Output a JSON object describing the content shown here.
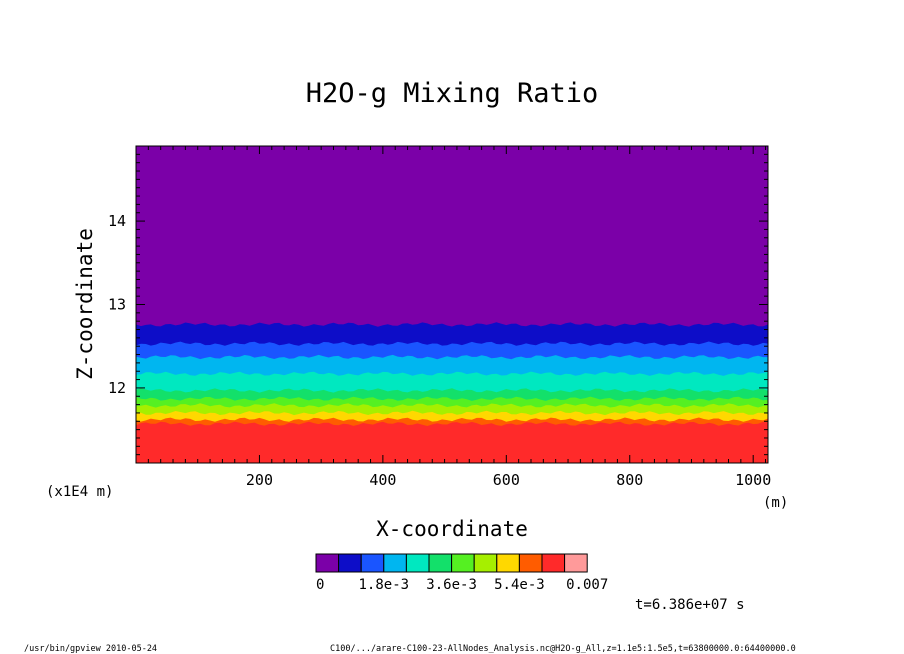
{
  "chart_data": {
    "type": "heatmap",
    "title": "H2O-g Mixing Ratio",
    "xlabel": "X-coordinate",
    "ylabel": "Z-coordinate",
    "x_unit": "(m)",
    "y_scale_label": "(x1E4 m)",
    "xlim": [
      0,
      1024
    ],
    "ylim": [
      11.1,
      14.9
    ],
    "x_ticks": [
      200,
      400,
      600,
      800,
      1000
    ],
    "x_tick_labels": [
      "200",
      "400",
      "600",
      "800",
      "1000"
    ],
    "y_ticks": [
      12,
      13,
      14
    ],
    "y_tick_labels": [
      "12",
      "13",
      "14"
    ],
    "colorbar": {
      "colors": [
        "#7b00a8",
        "#0d0dc8",
        "#1a55ff",
        "#00b6f0",
        "#00e8c0",
        "#13e06a",
        "#55f022",
        "#a6ef00",
        "#ffd800",
        "#ff5c00",
        "#ff2a2a",
        "#ff9a9a"
      ],
      "tick_labels": [
        "0",
        "1.8e-3",
        "3.6e-3",
        "5.4e-3",
        "0.007"
      ]
    },
    "bands": [
      {
        "level": 11,
        "z_top": 11.57,
        "color": "#ff2a2a"
      },
      {
        "level": 10,
        "z_top": 11.62,
        "color": "#ff5c00"
      },
      {
        "level": 8,
        "z_top": 11.7,
        "color": "#ffd800"
      },
      {
        "level": 7,
        "z_top": 11.79,
        "color": "#a6ef00"
      },
      {
        "level": 6,
        "z_top": 11.87,
        "color": "#55f022"
      },
      {
        "level": 5,
        "z_top": 11.97,
        "color": "#13e06a"
      },
      {
        "level": 4,
        "z_top": 12.17,
        "color": "#00e8c0"
      },
      {
        "level": 3,
        "z_top": 12.37,
        "color": "#00b6f0"
      },
      {
        "level": 2,
        "z_top": 12.53,
        "color": "#1a55ff"
      },
      {
        "level": 1,
        "z_top": 12.76,
        "color": "#0d0dc8"
      }
    ],
    "background_color": "#7b00a8",
    "time_label": "t=6.386e+07 s"
  },
  "footer": {
    "left": "/usr/bin/gpview  2010-05-24",
    "right": "C100/.../arare-C100-23-AllNodes_Analysis.nc@H2O-g_All,z=1.1e5:1.5e5,t=63800000.0:64400000.0"
  }
}
